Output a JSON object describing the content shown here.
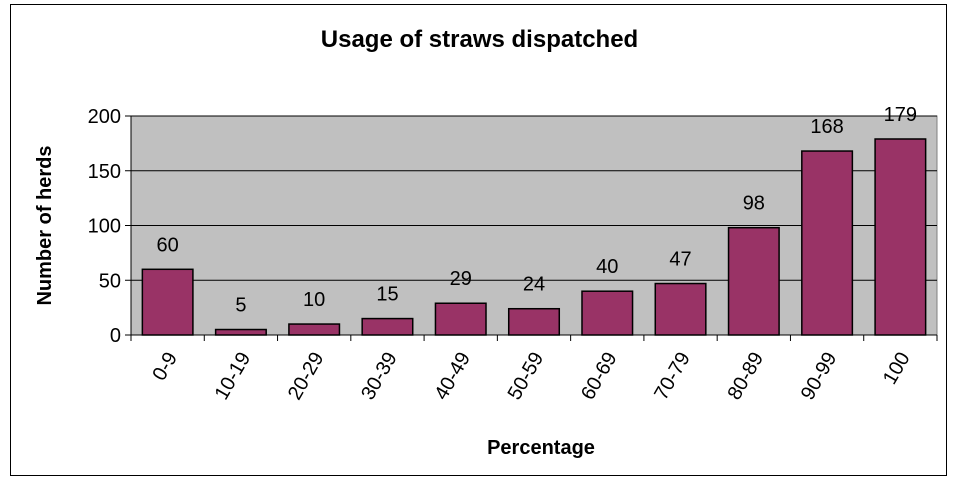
{
  "chart_data": {
    "type": "bar",
    "title": "Usage of straws dispatched",
    "xlabel": "Percentage",
    "ylabel": "Number of herds",
    "categories": [
      "0-9",
      "10-19",
      "20-29",
      "30-39",
      "40-49",
      "50-59",
      "60-69",
      "70-79",
      "80-89",
      "90-99",
      "100"
    ],
    "values": [
      60,
      5,
      10,
      15,
      29,
      24,
      40,
      47,
      98,
      168,
      179
    ],
    "ylim": [
      0,
      200
    ],
    "yticks": [
      0,
      50,
      100,
      150,
      200
    ],
    "grid": true,
    "legend": "none",
    "colors": {
      "bar": "#993366",
      "plot_background": "#c0c0c0",
      "gridline": "#000000"
    }
  }
}
